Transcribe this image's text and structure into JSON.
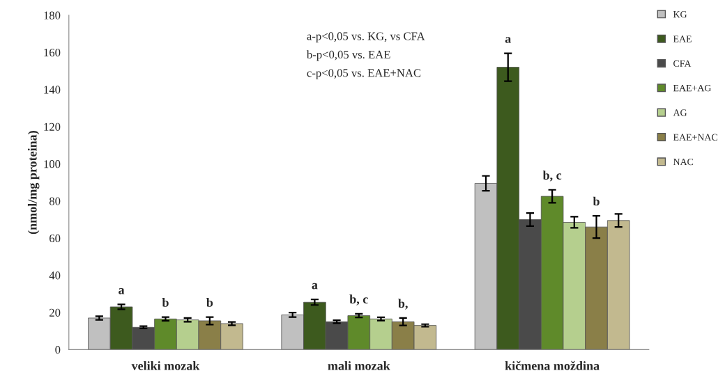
{
  "chart_data": {
    "type": "bar",
    "ylabel": "(nmol/mg proteina)",
    "categories": [
      "veliki mozak",
      "mali mozak",
      "kičmena moždina"
    ],
    "series": [
      {
        "name": "KG",
        "color": "#c0c0c0",
        "values": [
          17,
          18.7,
          89.5
        ],
        "errors": [
          1,
          1.2,
          4
        ]
      },
      {
        "name": "EAE",
        "color": "#3d5a1e",
        "values": [
          23,
          25.5,
          152
        ],
        "errors": [
          1.3,
          1.5,
          7.5
        ],
        "value_labels": [
          "a",
          "a",
          "a"
        ]
      },
      {
        "name": "CFA",
        "color": "#4a4a4a",
        "values": [
          12,
          15,
          70
        ],
        "errors": [
          0.6,
          0.8,
          3.5
        ]
      },
      {
        "name": "EAE+AG",
        "color": "#5f8a2a",
        "values": [
          16.5,
          18.3,
          82.5
        ],
        "errors": [
          1,
          1,
          3.5
        ],
        "value_labels": [
          "b",
          "b, c",
          "b, c"
        ]
      },
      {
        "name": "AG",
        "color": "#b5cf8e",
        "values": [
          16,
          16.5,
          68.5
        ],
        "errors": [
          1,
          0.9,
          3
        ]
      },
      {
        "name": "EAE+NAC",
        "color": "#8a7f48",
        "values": [
          15.5,
          15,
          66
        ],
        "errors": [
          2,
          2,
          6
        ],
        "value_labels": [
          "b",
          "b,",
          "b"
        ]
      },
      {
        "name": "NAC",
        "color": "#c2b98f",
        "values": [
          14,
          13,
          69.5
        ],
        "errors": [
          0.9,
          0.7,
          3.5
        ]
      }
    ],
    "ylim": [
      0,
      180
    ],
    "yticks": [
      0,
      20,
      40,
      60,
      80,
      100,
      120,
      140,
      160,
      180
    ],
    "grid": false,
    "legend": "right",
    "annotations": [
      "a-p<0,05 vs. KG, vs CFA",
      "b-p<0,05 vs. EAE",
      "c-p<0,05 vs. EAE+NAC"
    ]
  }
}
